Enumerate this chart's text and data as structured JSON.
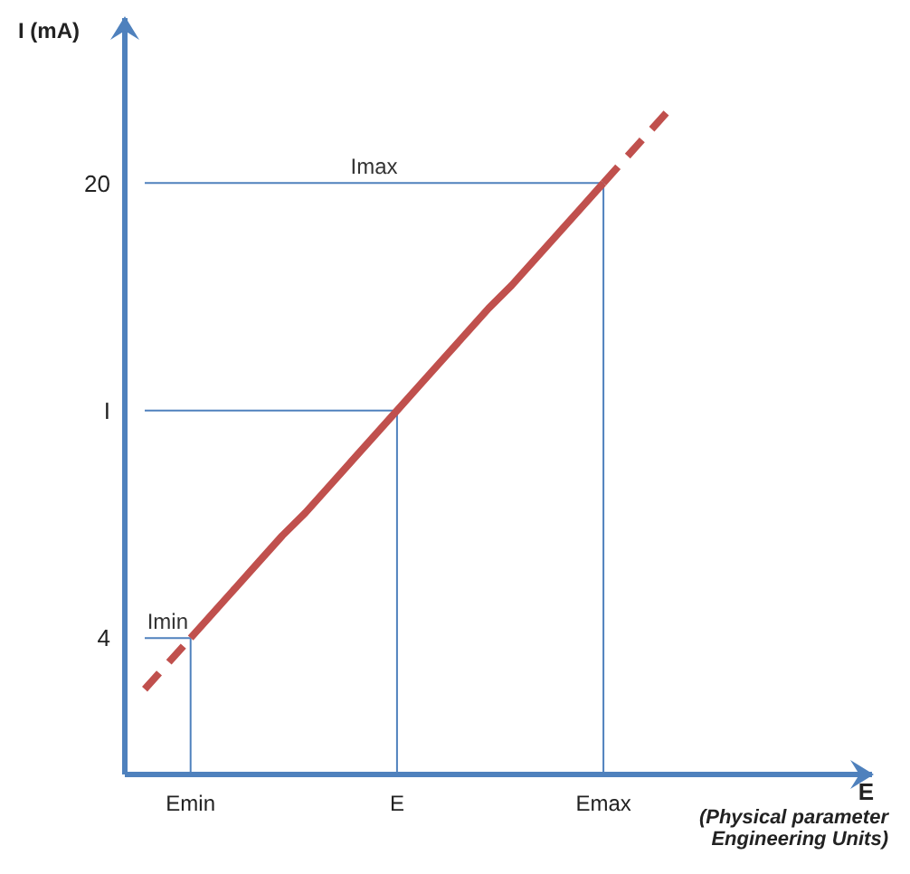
{
  "chart_data": {
    "type": "line",
    "ylabel": "I (mA)",
    "xlabel": "E",
    "annotations": [
      "(Physical parameter Engineering Units)"
    ],
    "categories": [
      null,
      null,
      "Emin",
      null,
      null,
      null,
      null,
      null,
      null,
      null,
      null,
      "E",
      null,
      null,
      null,
      null,
      null,
      null,
      null,
      null,
      "Emax",
      null,
      null,
      null,
      null,
      null,
      null,
      null,
      null,
      null,
      null,
      null
    ],
    "ylim": [
      -0.8,
      25.8
    ],
    "yticks": [
      4,
      {
        "value": 12,
        "label": "I"
      },
      20
    ],
    "grid": false,
    "marker": "none",
    "series": [
      {
        "values": [
          null,
          null,
          4,
          4.9,
          5.8,
          6.7,
          7.6,
          8.4,
          9.3,
          10.2,
          11.1,
          12,
          12.9,
          13.8,
          14.7,
          15.6,
          16.4,
          17.3,
          18.2,
          19.1,
          20,
          null,
          null,
          null,
          null,
          null,
          null,
          null,
          null,
          null,
          null,
          null
        ],
        "color": "#c0504d",
        "line_style": "solid"
      },
      {
        "values": [
          2.2,
          3.1,
          4,
          null,
          null,
          null,
          null,
          null,
          null,
          null,
          null,
          null,
          null,
          null,
          null,
          null,
          null,
          null,
          null,
          null,
          20,
          20.9,
          21.8,
          22.7,
          null,
          null,
          null,
          null,
          null,
          null,
          null,
          null
        ],
        "color": "#c0504d",
        "line_style": "dashed"
      }
    ],
    "ref_lines": [
      {
        "axis": "y",
        "value": 20,
        "label": "Imax",
        "color": "#4f81bd"
      },
      {
        "axis": "y",
        "value": 12,
        "label": null,
        "color": "#4f81bd"
      },
      {
        "axis": "y",
        "value": 4,
        "label": "Imin",
        "color": "#4f81bd"
      },
      {
        "axis": "x",
        "value": "Emin",
        "label": null,
        "color": "#4f81bd"
      },
      {
        "axis": "x",
        "value": "E",
        "label": null,
        "color": "#4f81bd"
      },
      {
        "axis": "x",
        "value": "Emax",
        "label": null,
        "color": "#4f81bd"
      }
    ]
  }
}
